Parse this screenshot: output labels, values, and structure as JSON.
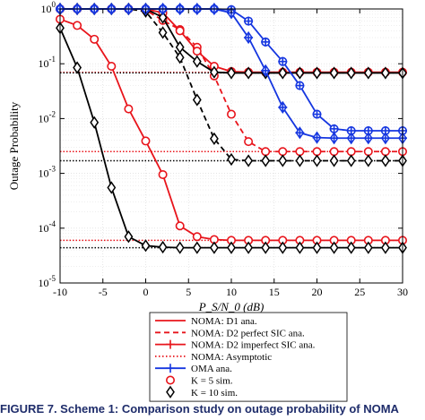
{
  "caption": "FIGURE 7. Scheme 1: Comparison study on outage probability of NOMA",
  "chart_data": {
    "type": "line",
    "xlabel": "P_S/N_0 (dB)",
    "ylabel": "Outage Probability",
    "xlim": [
      -10,
      30
    ],
    "ylim": [
      1e-05,
      1
    ],
    "yscale": "log",
    "grid": true,
    "legend_position": "bottom-left, below axes",
    "x_ticks": [
      -10,
      -5,
      0,
      5,
      10,
      15,
      20,
      25,
      30
    ],
    "y_ticks": [
      {
        "value": 1,
        "exp": "0"
      },
      {
        "value": 0.1,
        "exp": "-1"
      },
      {
        "value": 0.01,
        "exp": "-2"
      },
      {
        "value": 0.001,
        "exp": "-3"
      },
      {
        "value": 0.0001,
        "exp": "-4"
      },
      {
        "value": 1e-05,
        "exp": "-5"
      }
    ],
    "legend": [
      {
        "label": "NOMA: D1 ana.",
        "color": "#e8141b",
        "line": "solid",
        "marker": "none"
      },
      {
        "label": "NOMA: D2 perfect SIC ana.",
        "color": "#e8141b",
        "line": "dashed",
        "marker": "none"
      },
      {
        "label": "NOMA: D2 imperfect SIC ana.",
        "color": "#e8141b",
        "line": "solid",
        "marker": "plus"
      },
      {
        "label": "NOMA: Asymptotic",
        "color": "#e8141b",
        "line": "dotted",
        "marker": "none"
      },
      {
        "label": "OMA ana.",
        "color": "#1536e0",
        "line": "solid",
        "marker": "plus"
      },
      {
        "label": "K = 5 sim.",
        "color": "#e8141b",
        "line": "none",
        "marker": "circle"
      },
      {
        "label": "K = 10 sim.",
        "color": "#000000",
        "line": "none",
        "marker": "diamond"
      }
    ],
    "series": [
      {
        "color": "#e8141b",
        "line": "solid",
        "marker": "circle",
        "x": [
          -10,
          -8,
          -6,
          -4,
          -2,
          0,
          2,
          4,
          6,
          8,
          10,
          12,
          14,
          16,
          18,
          20,
          22,
          24,
          26,
          28,
          30
        ],
        "y": [
          0.65,
          0.5,
          0.28,
          0.09,
          0.015,
          0.0039,
          0.00095,
          0.00011,
          7e-05,
          6.2e-05,
          6e-05,
          6e-05,
          6e-05,
          6e-05,
          6e-05,
          6e-05,
          6e-05,
          6e-05,
          6e-05,
          6e-05,
          6e-05
        ]
      },
      {
        "color": "#000000",
        "line": "solid",
        "marker": "diamond",
        "x": [
          -10,
          -8,
          -6,
          -4,
          -2,
          0,
          2,
          4,
          6,
          8,
          10,
          12,
          14,
          16,
          18,
          20,
          22,
          24,
          26,
          28,
          30
        ],
        "y": [
          0.45,
          0.085,
          0.0085,
          0.00055,
          7e-05,
          4.8e-05,
          4.5e-05,
          4.4e-05,
          4.4e-05,
          4.4e-05,
          4.4e-05,
          4.4e-05,
          4.4e-05,
          4.4e-05,
          4.4e-05,
          4.4e-05,
          4.4e-05,
          4.4e-05,
          4.4e-05,
          4.4e-05,
          4.4e-05
        ]
      },
      {
        "color": "#e8141b",
        "line": "dashed",
        "marker": "circle",
        "x": [
          -10,
          -8,
          -6,
          -4,
          -2,
          0,
          2,
          4,
          6,
          8,
          10,
          12,
          14,
          16,
          18,
          20,
          22,
          24,
          26,
          28,
          30
        ],
        "y": [
          1,
          1,
          1,
          1,
          1,
          0.95,
          0.62,
          0.42,
          0.2,
          0.06,
          0.012,
          0.0038,
          0.0025,
          0.0025,
          0.0025,
          0.0025,
          0.0025,
          0.0025,
          0.0025,
          0.0025,
          0.0025
        ]
      },
      {
        "color": "#000000",
        "line": "dashed",
        "marker": "diamond",
        "x": [
          -10,
          -8,
          -6,
          -4,
          -2,
          0,
          2,
          4,
          6,
          8,
          10,
          12,
          14,
          16,
          18,
          20,
          22,
          24,
          26,
          28,
          30
        ],
        "y": [
          1,
          1,
          1,
          1,
          1,
          0.9,
          0.37,
          0.13,
          0.022,
          0.0043,
          0.0018,
          0.0017,
          0.0017,
          0.0017,
          0.0017,
          0.0017,
          0.0017,
          0.0017,
          0.0017,
          0.0017,
          0.0017
        ]
      },
      {
        "color": "#e8141b",
        "line": "solid",
        "marker": "circle",
        "x": [
          -10,
          -8,
          -6,
          -4,
          -2,
          0,
          2,
          4,
          6,
          8,
          10,
          12,
          14,
          16,
          18,
          20,
          22,
          24,
          26,
          28,
          30
        ],
        "y": [
          1,
          1,
          1,
          1,
          1,
          1,
          0.85,
          0.4,
          0.17,
          0.09,
          0.072,
          0.07,
          0.07,
          0.07,
          0.07,
          0.07,
          0.07,
          0.07,
          0.07,
          0.07,
          0.07
        ]
      },
      {
        "color": "#000000",
        "line": "solid",
        "marker": "diamond",
        "x": [
          -10,
          -8,
          -6,
          -4,
          -2,
          0,
          2,
          4,
          6,
          8,
          10,
          12,
          14,
          16,
          18,
          20,
          22,
          24,
          26,
          28,
          30
        ],
        "y": [
          1,
          1,
          1,
          1,
          1,
          1,
          0.7,
          0.2,
          0.11,
          0.07,
          0.068,
          0.068,
          0.068,
          0.068,
          0.068,
          0.068,
          0.068,
          0.068,
          0.068,
          0.068,
          0.068
        ]
      },
      {
        "color": "#1536e0",
        "line": "solid",
        "marker": "circle",
        "x": [
          -10,
          -8,
          -6,
          -4,
          -2,
          0,
          2,
          4,
          6,
          8,
          10,
          12,
          14,
          16,
          18,
          20,
          22,
          24,
          26,
          28,
          30
        ],
        "y": [
          1,
          1,
          1,
          1,
          1,
          1,
          1,
          1,
          1,
          1,
          0.97,
          0.6,
          0.25,
          0.11,
          0.04,
          0.012,
          0.0065,
          0.006,
          0.006,
          0.006,
          0.006
        ]
      },
      {
        "color": "#1536e0",
        "line": "solid",
        "marker": "diamond",
        "x": [
          -10,
          -8,
          -6,
          -4,
          -2,
          0,
          2,
          4,
          6,
          8,
          10,
          12,
          14,
          16,
          18,
          20,
          22,
          24,
          26,
          28,
          30
        ],
        "y": [
          1,
          1,
          1,
          1,
          1,
          1,
          1,
          1,
          1,
          1,
          0.85,
          0.3,
          0.075,
          0.016,
          0.0055,
          0.0045,
          0.0044,
          0.0044,
          0.0044,
          0.0044,
          0.0044
        ]
      }
    ],
    "asymptotes": [
      {
        "color": "#e8141b",
        "y": 0.07,
        "x_from": -10
      },
      {
        "color": "#000000",
        "y": 0.068,
        "x_from": -10
      },
      {
        "color": "#e8141b",
        "y": 0.0025,
        "x_from": -10
      },
      {
        "color": "#000000",
        "y": 0.0017,
        "x_from": -10
      },
      {
        "color": "#e8141b",
        "y": 6e-05,
        "x_from": -10
      },
      {
        "color": "#000000",
        "y": 4.4e-05,
        "x_from": -10
      }
    ]
  }
}
